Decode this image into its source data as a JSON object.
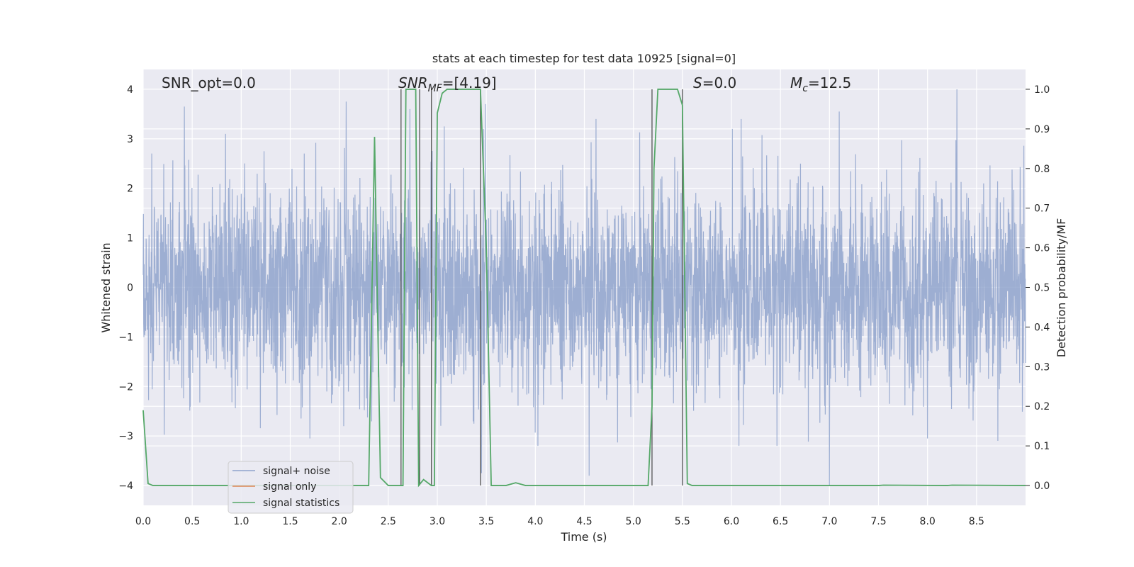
{
  "chart_data": {
    "type": "line",
    "title": "stats at each timestep for test data 10925 [signal=0]",
    "xlabel": "Time (s)",
    "ylabel_left": "Whitened strain",
    "ylabel_right": "Detection probability/MF",
    "xlim": [
      0.0,
      9.0
    ],
    "ylim_left": [
      -4.4,
      4.4
    ],
    "ylim_right": [
      -0.05,
      1.05
    ],
    "x_ticks": [
      "0.0",
      "0.5",
      "1.0",
      "1.5",
      "2.0",
      "2.5",
      "3.0",
      "3.5",
      "4.0",
      "4.5",
      "5.0",
      "5.5",
      "6.0",
      "6.5",
      "7.0",
      "7.5",
      "8.0",
      "8.5"
    ],
    "y_left_ticks": [
      "4",
      "3",
      "2",
      "1",
      "0",
      "−1",
      "−2",
      "−3",
      "−4"
    ],
    "y_right_ticks": [
      "1.0",
      "0.9",
      "0.8",
      "0.7",
      "0.6",
      "0.5",
      "0.4",
      "0.3",
      "0.2",
      "0.1",
      "0.0"
    ],
    "grid": true,
    "legend_position": "lower-left",
    "annotations": {
      "snr_opt": "SNR_opt=0.0",
      "snr_mf_main": "SNR",
      "snr_mf_sub": "MF",
      "snr_mf_value": "=[4.19]",
      "s_main": "S",
      "s_value": "=0.0",
      "mc_main": "M",
      "mc_sub": "c",
      "mc_value": "=12.5"
    },
    "series": [
      {
        "name": "signal+ noise",
        "color": "#8fa3cc",
        "axis": "left",
        "description": "dense whitened noise, approx range -3.8 to 4.0",
        "peaks": [
          [
            0.42,
            3.65
          ],
          [
            0.84,
            3.1
          ],
          [
            2.07,
            3.75
          ],
          [
            2.72,
            3.6
          ],
          [
            3.07,
            3.25
          ],
          [
            3.49,
            3.7
          ],
          [
            4.62,
            3.4
          ],
          [
            6.1,
            3.4
          ],
          [
            7.1,
            3.55
          ],
          [
            8.3,
            4.0
          ],
          [
            3.45,
            -3.75
          ],
          [
            4.55,
            -3.8
          ],
          [
            7.0,
            -4.0
          ],
          [
            8.0,
            -3.05
          ],
          [
            1.7,
            -3.05
          ]
        ]
      },
      {
        "name": "signal only",
        "color": "#dd8452",
        "axis": "left",
        "values": []
      },
      {
        "name": "signal statistics",
        "color": "#55a868",
        "axis": "right",
        "x": [
          0.0,
          0.05,
          0.1,
          0.2,
          2.3,
          2.36,
          2.42,
          2.5,
          2.62,
          2.65,
          2.68,
          2.7,
          2.78,
          2.81,
          2.86,
          2.94,
          2.97,
          3.0,
          3.05,
          3.1,
          3.44,
          3.5,
          3.55,
          3.6,
          3.7,
          3.8,
          3.9,
          5.15,
          5.19,
          5.21,
          5.25,
          5.45,
          5.5,
          5.55,
          5.6,
          5.7,
          7.5,
          7.55,
          8.2,
          8.25,
          9.0
        ],
        "values": [
          0.19,
          0.005,
          0.0,
          0.0,
          0.0,
          0.88,
          0.02,
          0.0,
          0.0,
          0.0,
          1.0,
          1.0,
          1.0,
          0.0,
          0.015,
          0.0,
          0.0,
          0.94,
          0.99,
          1.0,
          1.0,
          0.6,
          0.0,
          0.0,
          0.0,
          0.007,
          0.0,
          0.0,
          0.2,
          0.8,
          1.0,
          1.0,
          0.96,
          0.005,
          0.0,
          0.0,
          0.0,
          0.001,
          0.0,
          0.001,
          0.0
        ]
      }
    ],
    "vertical_lines": [
      2.63,
      2.82,
      2.94,
      3.44,
      5.19,
      5.5
    ],
    "vertical_line_range": [
      0.0,
      1.0
    ]
  }
}
